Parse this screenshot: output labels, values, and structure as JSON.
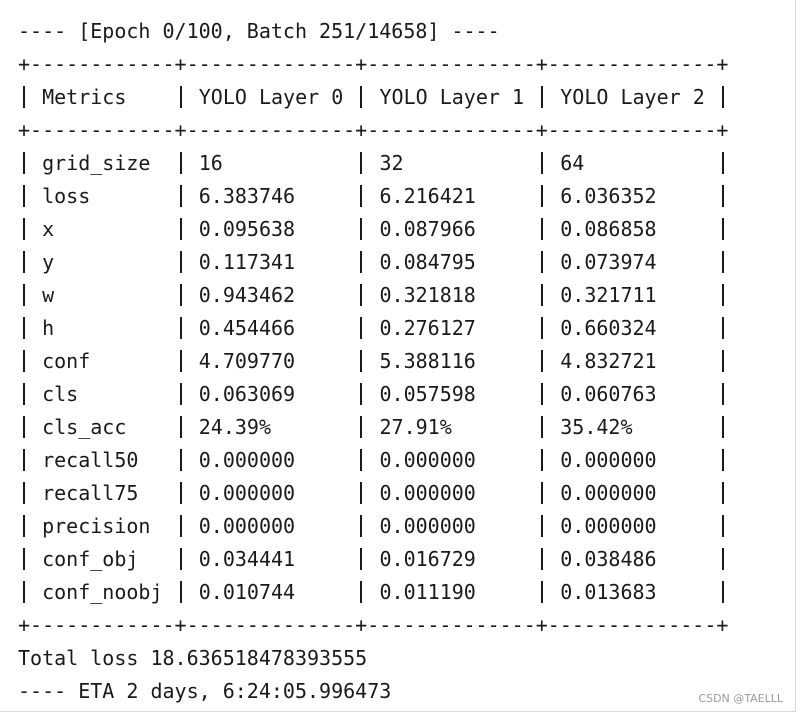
{
  "header": {
    "title": "---- [Epoch 0/100, Batch 251/14658] ----"
  },
  "table": {
    "border": "+------------+--------------+--------------+--------------+",
    "columns": [
      "Metrics",
      "YOLO Layer 0",
      "YOLO Layer 1",
      "YOLO Layer 2"
    ],
    "rows": [
      [
        "grid_size",
        "16",
        "32",
        "64"
      ],
      [
        "loss",
        "6.383746",
        "6.216421",
        "6.036352"
      ],
      [
        "x",
        "0.095638",
        "0.087966",
        "0.086858"
      ],
      [
        "y",
        "0.117341",
        "0.084795",
        "0.073974"
      ],
      [
        "w",
        "0.943462",
        "0.321818",
        "0.321711"
      ],
      [
        "h",
        "0.454466",
        "0.276127",
        "0.660324"
      ],
      [
        "conf",
        "4.709770",
        "5.388116",
        "4.832721"
      ],
      [
        "cls",
        "0.063069",
        "0.057598",
        "0.060763"
      ],
      [
        "cls_acc",
        "24.39%",
        "27.91%",
        "35.42%"
      ],
      [
        "recall50",
        "0.000000",
        "0.000000",
        "0.000000"
      ],
      [
        "recall75",
        "0.000000",
        "0.000000",
        "0.000000"
      ],
      [
        "precision",
        "0.000000",
        "0.000000",
        "0.000000"
      ],
      [
        "conf_obj",
        "0.034441",
        "0.016729",
        "0.038486"
      ],
      [
        "conf_noobj",
        "0.010744",
        "0.011190",
        "0.013683"
      ]
    ]
  },
  "footer": {
    "total": "Total loss 18.636518478393555",
    "eta": "---- ETA 2 days, 6:24:05.996473"
  },
  "watermark": "CSDN @TAELLL"
}
